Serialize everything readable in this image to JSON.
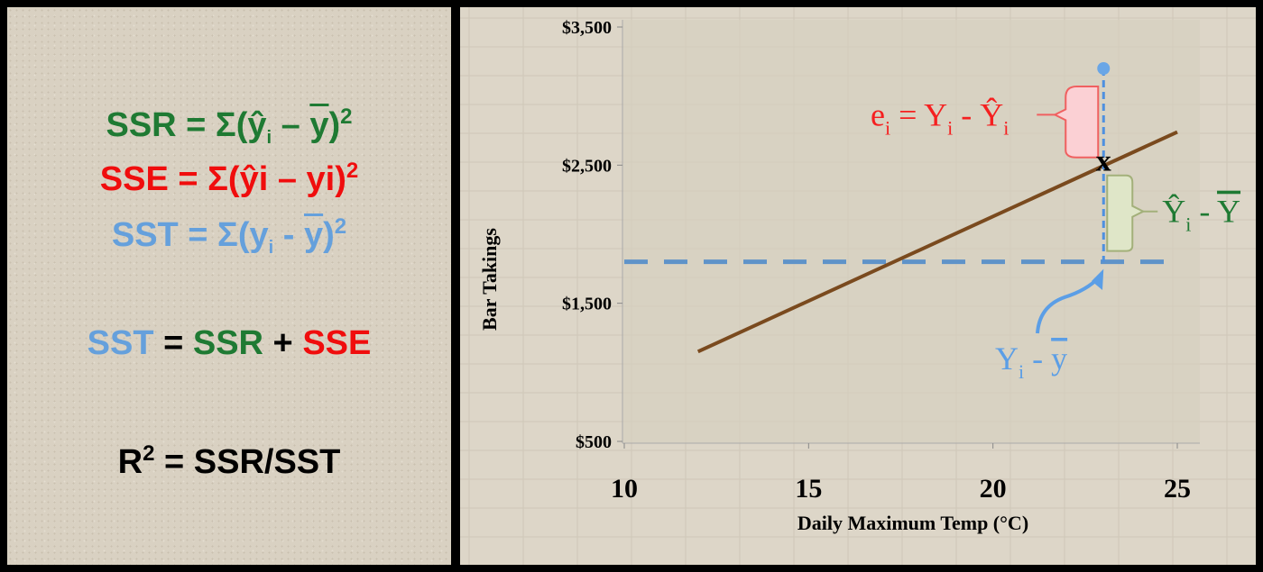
{
  "formulas": {
    "ssr": {
      "lhs": "SSR",
      "eq": " = Σ(",
      "a": "ŷ",
      "a_sub": "i",
      "op": " – ",
      "b": "y",
      "close": ")",
      "sup": "2"
    },
    "sse": {
      "lhs": "SSE",
      "eq": " = Σ(",
      "a": "ŷi",
      "op": " – ",
      "b": "yi",
      "close": ")",
      "sup": "2"
    },
    "sst": {
      "lhs": "SST",
      "eq": " = Σ(",
      "a": "y",
      "a_sub": "i",
      "op": " - ",
      "b": "y",
      "close": ")",
      "sup": "2"
    },
    "identity": {
      "sst": "SST",
      "eq": " = ",
      "ssr": "SSR",
      "plus": " + ",
      "sse": "SSE"
    },
    "r2": {
      "r": "R",
      "sup": "2",
      "rest": " = SSR/SST"
    }
  },
  "colors": {
    "ssr": "#1f7a33",
    "sse": "#f00d0d",
    "sst": "#65a0dc",
    "line": "#7a4a1e",
    "mean": "#5f93c9"
  },
  "chart_data": {
    "type": "line",
    "xlabel": "Daily Maximum Temp (°C)",
    "ylabel": "Bar Takings",
    "xlim": [
      10,
      25
    ],
    "ylim": [
      500,
      3500
    ],
    "x_ticks": [
      "10",
      "15",
      "20",
      "25"
    ],
    "y_ticks": [
      "$500",
      "$1,500",
      "$2,500",
      "$3,500"
    ],
    "regression_line": {
      "x": [
        12,
        25
      ],
      "y": [
        1150,
        2740
      ]
    },
    "mean_line": {
      "y": 1800
    },
    "observed_point": {
      "x": 23,
      "y": 3200
    },
    "predicted_point": {
      "x": 23,
      "y": 2530
    },
    "annotations": {
      "error": {
        "e": "e",
        "e_sub": "i",
        "rest": " = Y",
        "y_sub": "i",
        "minus": " - Ŷ",
        "yhat_sub": "i"
      },
      "explained": {
        "a": "Ŷ",
        "a_sub": "i",
        "minus": " - ",
        "b": "Y"
      },
      "total": {
        "a": "Y",
        "a_sub": "i",
        "minus": " - ",
        "b": "y"
      },
      "predicted_marker": "x"
    }
  }
}
